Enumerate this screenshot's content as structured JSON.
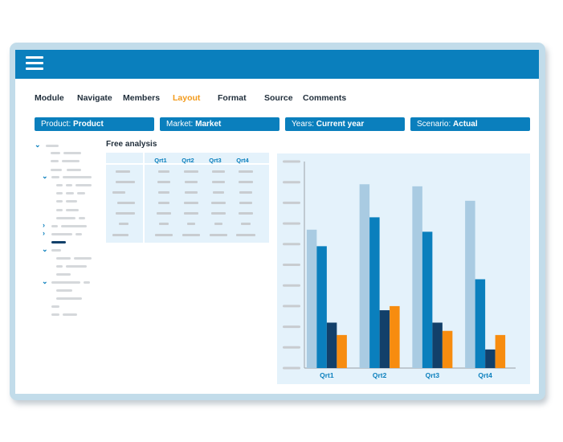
{
  "menu": {
    "items": [
      "Module",
      "Navigate",
      "Members",
      "Layout",
      "Format",
      "Source",
      "Comments"
    ],
    "active": "Layout"
  },
  "filters": [
    {
      "label": "Product:",
      "value": "Product"
    },
    {
      "label": "Market:",
      "value": "Market"
    },
    {
      "label": "Years:",
      "value": "Current year"
    },
    {
      "label": "Scenario:",
      "value": "Actual"
    }
  ],
  "panel": {
    "title": "Free analysis"
  },
  "grid": {
    "columns": [
      "Qrt1",
      "Qrt2",
      "Qrt3",
      "Qrt4"
    ]
  },
  "icons": {
    "menu": "hamburger-icon",
    "expanded": "chevron-down-icon",
    "collapsed": "chevron-right-icon"
  },
  "colors": {
    "brand": "#0a7fbd",
    "active_menu": "#f39a1a",
    "selection": "#12406a"
  },
  "chart_data": {
    "type": "bar",
    "categories": [
      "Qrt1",
      "Qrt2",
      "Qrt3",
      "Qrt4"
    ],
    "series": [
      {
        "values": [
          67,
          89,
          88,
          81
        ],
        "color": "#a9cbe2"
      },
      {
        "values": [
          59,
          73,
          66,
          43
        ],
        "color": "#0a7fbd"
      },
      {
        "values": [
          22,
          28,
          22,
          9
        ],
        "color": "#12406a"
      },
      {
        "values": [
          16,
          30,
          18,
          16
        ],
        "color": "#f78c0f"
      }
    ],
    "ylim": [
      0,
      100
    ],
    "yticks_count": 11,
    "grid": false,
    "legend": "none"
  }
}
